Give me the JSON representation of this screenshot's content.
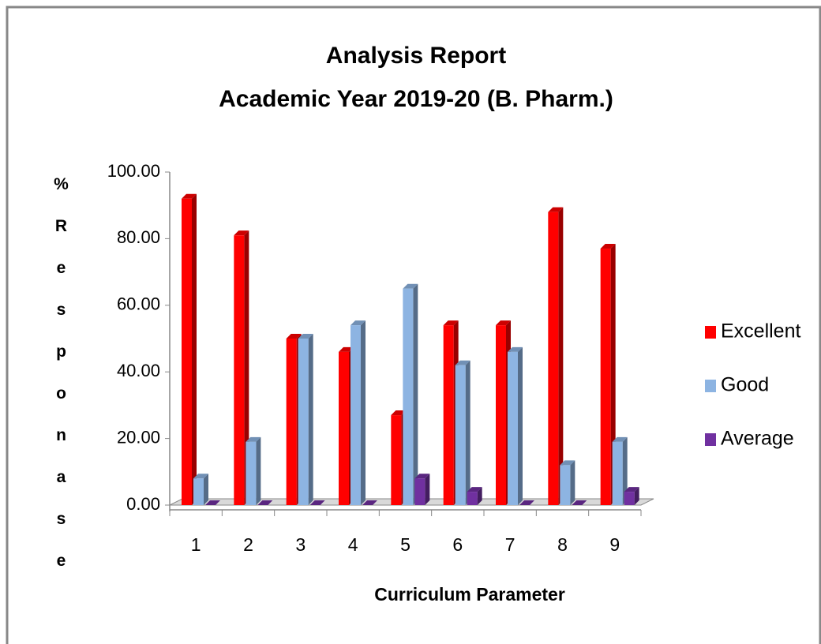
{
  "chart_data": {
    "type": "bar",
    "title": "Analysis Report",
    "subtitle": "Academic Year 2019-20 (B. Pharm.)",
    "x_label": "Curriculum  Parameter",
    "y_label": "%Responase",
    "categories": [
      "1",
      "2",
      "3",
      "4",
      "5",
      "6",
      "7",
      "8",
      "9"
    ],
    "series": [
      {
        "name": "Excellent",
        "color": "#ff0000",
        "values": [
          92,
          81,
          50,
          46,
          27,
          54,
          54,
          88,
          77
        ]
      },
      {
        "name": "Good",
        "color": "#8db4e2",
        "values": [
          8,
          19,
          50,
          54,
          65,
          42,
          46,
          12,
          19
        ]
      },
      {
        "name": "Average",
        "color": "#7030a0",
        "values": [
          0,
          0,
          0,
          0,
          8,
          4,
          0,
          0,
          4
        ]
      }
    ],
    "ylim": [
      0,
      100
    ],
    "yticks": [
      {
        "value": 0,
        "label": "0.00"
      },
      {
        "value": 20,
        "label": "20.00"
      },
      {
        "value": 40,
        "label": "40.00"
      },
      {
        "value": 60,
        "label": "60.00"
      },
      {
        "value": 80,
        "label": "80.00"
      },
      {
        "value": 100,
        "label": "100.00"
      }
    ],
    "grid": false,
    "legend": "right"
  }
}
